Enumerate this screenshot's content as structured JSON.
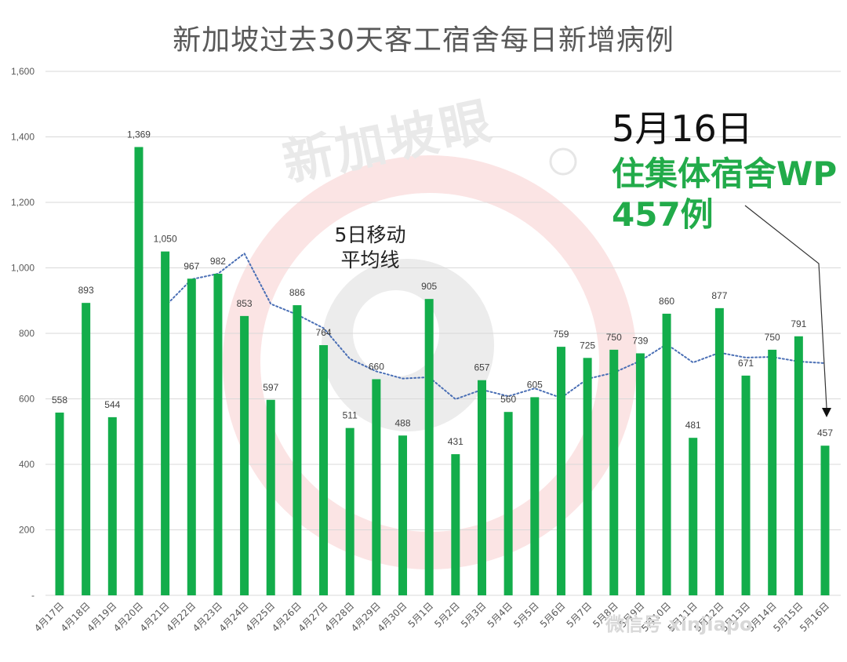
{
  "title": "新加坡过去30天客工宿舍每日新增病例",
  "annotation": {
    "date": "5月16日",
    "line1": "住集体宿舍WP",
    "line2": "457例"
  },
  "moving_average_label": {
    "line1": "5日移动",
    "line2": "平均线"
  },
  "watermark": {
    "brand": "新加坡眼",
    "registered_symbol": "®",
    "wechat_text": "微信号 xinjiapo"
  },
  "colors": {
    "bar": "#13ad4b",
    "moving_average": "#4a6fb5",
    "grid": "#d9d9d9",
    "annotation_green": "#22ab4a",
    "title": "#595959"
  },
  "chart_data": {
    "type": "bar",
    "title": "新加坡过去30天客工宿舍每日新增病例",
    "xlabel": "",
    "ylabel": "",
    "ylim": [
      0,
      1600
    ],
    "yticks": [
      "-",
      "200",
      "400",
      "600",
      "800",
      "1,000",
      "1,200",
      "1,400",
      "1,600"
    ],
    "grid": true,
    "categories": [
      "4月17日",
      "4月18日",
      "4月19日",
      "4月20日",
      "4月21日",
      "4月22日",
      "4月23日",
      "4月24日",
      "4月25日",
      "4月26日",
      "4月27日",
      "4月28日",
      "4月29日",
      "4月30日",
      "5月1日",
      "5月2日",
      "5月3日",
      "5月4日",
      "5月5日",
      "5月6日",
      "5月7日",
      "5月8日",
      "5月9日",
      "5月10日",
      "5月11日",
      "5月12日",
      "5月13日",
      "5月14日",
      "5月15日",
      "5月16日"
    ],
    "values": [
      558,
      893,
      544,
      1369,
      1050,
      967,
      982,
      853,
      597,
      886,
      764,
      511,
      660,
      488,
      905,
      431,
      657,
      560,
      605,
      759,
      725,
      750,
      739,
      860,
      481,
      877,
      671,
      750,
      791,
      457
    ],
    "data_labels": [
      "558",
      "893",
      "544",
      "1,369",
      "1,050",
      "967",
      "982",
      "853",
      "597",
      "886",
      "764",
      "511",
      "660",
      "488",
      "905",
      "431",
      "657",
      "560",
      "605",
      "759",
      "725",
      "750",
      "739",
      "860",
      "481",
      "877",
      "671",
      "750",
      "791",
      "457"
    ],
    "moving_average_5day": [
      null,
      null,
      null,
      null,
      883,
      965,
      982,
      1044,
      890,
      857,
      816,
      722,
      684,
      662,
      666,
      599,
      628,
      608,
      632,
      603,
      661,
      680,
      716,
      767,
      711,
      741,
      726,
      728,
      714,
      709
    ]
  }
}
